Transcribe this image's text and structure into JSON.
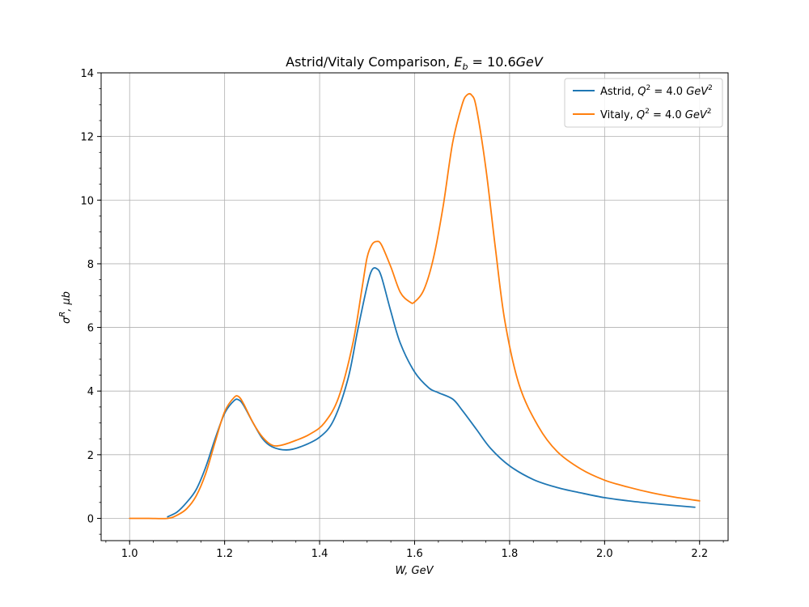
{
  "chart_data": {
    "type": "line",
    "title": "Astrid/Vitaly Comparison, E_b = 10.6GeV",
    "title_parts": {
      "prefix": "Astrid/Vitaly Comparison, ",
      "sym": "E",
      "sub": "b",
      "value": " = 10.6",
      "unit": "GeV"
    },
    "xlabel": "W, GeV",
    "ylabel": "σ^R, μb",
    "xlabel_parts": {
      "main": "W, GeV"
    },
    "ylabel_parts": {
      "sym": "σ",
      "sup": "R",
      "rest": ", μb"
    },
    "xlim": [
      0.94,
      2.26
    ],
    "ylim": [
      -0.7,
      14
    ],
    "xticks": [
      1.0,
      1.2,
      1.4,
      1.6,
      1.8,
      2.0,
      2.2
    ],
    "xtick_labels": [
      "1.0",
      "1.2",
      "1.4",
      "1.6",
      "1.8",
      "2.0",
      "2.2"
    ],
    "yticks": [
      0,
      2,
      4,
      6,
      8,
      10,
      12,
      14
    ],
    "ytick_labels": [
      "0",
      "2",
      "4",
      "6",
      "8",
      "10",
      "12",
      "14"
    ],
    "grid": true,
    "legend_position": "top-right",
    "series": [
      {
        "name": "Astrid, Q^2 = 4.0 GeV^2",
        "name_parts": {
          "label": "Astrid, ",
          "sym": "Q",
          "sup": "2",
          "value": " = 4.0 ",
          "unit": "GeV",
          "unit_sup": "2"
        },
        "color": "#1f77b4",
        "x": [
          1.08,
          1.1,
          1.12,
          1.14,
          1.16,
          1.18,
          1.2,
          1.22,
          1.23,
          1.24,
          1.26,
          1.28,
          1.3,
          1.33,
          1.36,
          1.4,
          1.43,
          1.46,
          1.48,
          1.5,
          1.51,
          1.52,
          1.53,
          1.55,
          1.57,
          1.6,
          1.63,
          1.65,
          1.68,
          1.7,
          1.73,
          1.76,
          1.8,
          1.85,
          1.9,
          1.95,
          2.0,
          2.05,
          2.1,
          2.15,
          2.19
        ],
        "y": [
          0.05,
          0.2,
          0.5,
          0.9,
          1.6,
          2.5,
          3.3,
          3.7,
          3.72,
          3.55,
          3.0,
          2.5,
          2.25,
          2.15,
          2.25,
          2.55,
          3.1,
          4.4,
          5.9,
          7.3,
          7.8,
          7.85,
          7.6,
          6.5,
          5.5,
          4.6,
          4.1,
          3.95,
          3.75,
          3.4,
          2.8,
          2.2,
          1.65,
          1.22,
          0.97,
          0.8,
          0.65,
          0.55,
          0.47,
          0.4,
          0.35
        ]
      },
      {
        "name": "Vitaly, Q^2 = 4.0 GeV^2",
        "name_parts": {
          "label": "Vitaly, ",
          "sym": "Q",
          "sup": "2",
          "value": " = 4.0 ",
          "unit": "GeV",
          "unit_sup": "2"
        },
        "color": "#ff7f0e",
        "x": [
          1.0,
          1.04,
          1.08,
          1.1,
          1.12,
          1.14,
          1.16,
          1.18,
          1.2,
          1.22,
          1.23,
          1.24,
          1.26,
          1.28,
          1.3,
          1.32,
          1.35,
          1.38,
          1.41,
          1.44,
          1.47,
          1.49,
          1.5,
          1.51,
          1.52,
          1.53,
          1.55,
          1.57,
          1.59,
          1.6,
          1.62,
          1.64,
          1.66,
          1.68,
          1.7,
          1.71,
          1.72,
          1.73,
          1.75,
          1.77,
          1.79,
          1.82,
          1.86,
          1.9,
          1.95,
          2.0,
          2.05,
          2.1,
          2.15,
          2.2
        ],
        "y": [
          0.0,
          0.0,
          0.0,
          0.1,
          0.3,
          0.7,
          1.4,
          2.4,
          3.35,
          3.8,
          3.82,
          3.6,
          3.0,
          2.55,
          2.3,
          2.3,
          2.45,
          2.65,
          3.0,
          3.8,
          5.5,
          7.3,
          8.2,
          8.6,
          8.7,
          8.6,
          7.9,
          7.1,
          6.8,
          6.8,
          7.2,
          8.2,
          9.8,
          11.8,
          13.0,
          13.3,
          13.3,
          12.9,
          11.0,
          8.5,
          6.2,
          4.2,
          2.9,
          2.1,
          1.55,
          1.2,
          0.98,
          0.8,
          0.66,
          0.55
        ]
      }
    ]
  }
}
